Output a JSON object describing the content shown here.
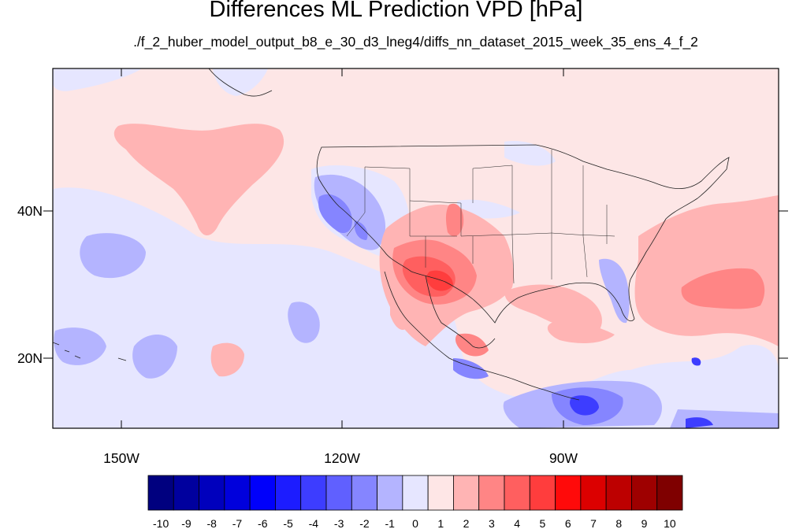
{
  "title": "Differences ML Prediction VPD [hPa]",
  "subtitle": "./f_2_huber_model_output_b8_e_30_d3_lneg4/diffs_nn_dataset_2015_week_35_ens_4_f_2",
  "map": {
    "lat_labels": [
      "40N",
      "20N"
    ],
    "lon_labels": [
      "150W",
      "120W",
      "90W"
    ],
    "background_color": "#fde6e6"
  },
  "colorbar": {
    "labels": [
      "-10",
      "-9",
      "-8",
      "-7",
      "-6",
      "-5",
      "-4",
      "-3",
      "-2",
      "-1",
      "0",
      "1",
      "2",
      "3",
      "4",
      "5",
      "6",
      "7",
      "8",
      "9",
      "10"
    ],
    "colors": [
      "#00007f",
      "#00009e",
      "#0000bd",
      "#0000dc",
      "#0000fb",
      "#1c1cff",
      "#3d3dff",
      "#6060ff",
      "#8585ff",
      "#b4b4ff",
      "#e6e6ff",
      "#fee6e6",
      "#ffb4b4",
      "#ff8585",
      "#ff5f5f",
      "#ff3d3d",
      "#ff0a0a",
      "#dc0000",
      "#bd0000",
      "#9e0000",
      "#7f0000"
    ]
  }
}
